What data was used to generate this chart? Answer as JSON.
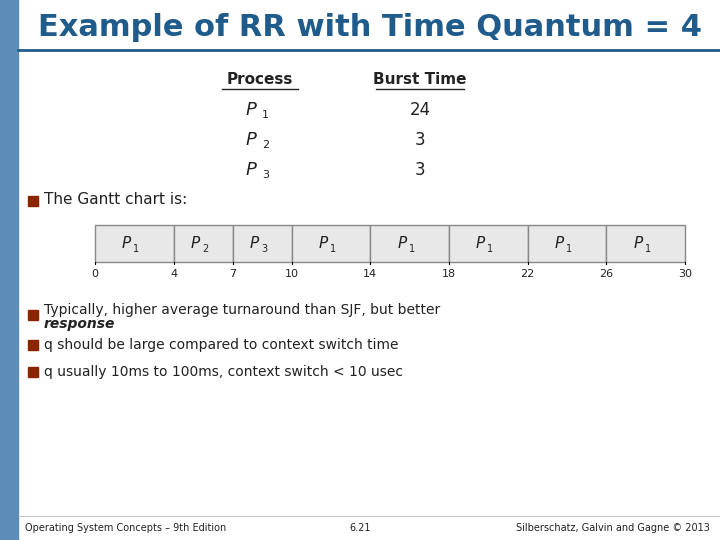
{
  "title": "Example of RR with Time Quantum = 4",
  "title_color": "#1F5C8B",
  "title_fontsize": 22,
  "bg_color": "#FFFFFF",
  "sidebar_color": "#5B8DB8",
  "table_headers": [
    "Process",
    "Burst Time"
  ],
  "table_rows": [
    [
      "P",
      "1",
      "24"
    ],
    [
      "P",
      "2",
      "3"
    ],
    [
      "P",
      "3",
      "3"
    ]
  ],
  "gantt_segments": [
    {
      "label": "P",
      "sub": "1",
      "start": 0,
      "end": 4
    },
    {
      "label": "P",
      "sub": "2",
      "start": 4,
      "end": 7
    },
    {
      "label": "P",
      "sub": "3",
      "start": 7,
      "end": 10
    },
    {
      "label": "P",
      "sub": "1",
      "start": 10,
      "end": 14
    },
    {
      "label": "P",
      "sub": "1",
      "start": 14,
      "end": 18
    },
    {
      "label": "P",
      "sub": "1",
      "start": 18,
      "end": 22
    },
    {
      "label": "P",
      "sub": "1",
      "start": 22,
      "end": 26
    },
    {
      "label": "P",
      "sub": "1",
      "start": 26,
      "end": 30
    }
  ],
  "gantt_ticks": [
    0,
    4,
    7,
    10,
    14,
    18,
    22,
    26,
    30
  ],
  "gantt_bg": "#E8E8E8",
  "gantt_border": "#888888",
  "bullet_color": "#8B2500",
  "bullet_items_plain": [
    [
      "Typically, higher average turnaround than SJF, but better",
      "response"
    ],
    [
      "q should be large compared to context switch time"
    ],
    [
      "q usually 10ms to 100ms, context switch < 10 usec"
    ]
  ],
  "footer_left": "Operating System Concepts – 9th Edition",
  "footer_center": "6.21",
  "footer_right": "Silberschatz, Galvin and Gagne © 2013",
  "text_color": "#222222",
  "header_underline_color": "#1F5C8B"
}
